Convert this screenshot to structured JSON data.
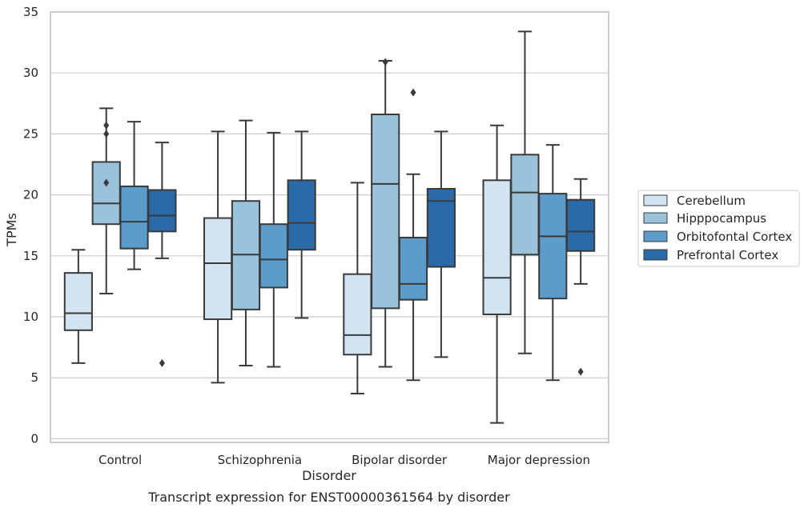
{
  "chart_data": {
    "type": "boxplot",
    "caption": "Transcript expression for ENST00000361564 by disorder",
    "xlabel": "Disorder",
    "ylabel": "TPMs",
    "ylim": [
      -0.3,
      35
    ],
    "yticks": [
      0,
      5,
      10,
      15,
      20,
      25,
      30,
      35
    ],
    "grid": "horizontal",
    "legend_position": "right",
    "categories": [
      "Control",
      "Schizophrenia",
      "Bipolar disorder",
      "Major depression"
    ],
    "series": [
      {
        "name": "Cerebellum",
        "color": "#d2e3f2",
        "boxes": [
          {
            "whislo": 6.2,
            "q1": 8.9,
            "med": 10.3,
            "q3": 13.6,
            "whishi": 15.5,
            "fliers": []
          },
          {
            "whislo": 4.6,
            "q1": 9.8,
            "med": 14.4,
            "q3": 18.1,
            "whishi": 25.2,
            "fliers": []
          },
          {
            "whislo": 3.7,
            "q1": 6.9,
            "med": 8.5,
            "q3": 13.5,
            "whishi": 21.0,
            "fliers": []
          },
          {
            "whislo": 1.3,
            "q1": 10.2,
            "med": 13.2,
            "q3": 21.2,
            "whishi": 25.7,
            "fliers": []
          }
        ]
      },
      {
        "name": "Hipppocampus",
        "color": "#9ac3db",
        "boxes": [
          {
            "whislo": 11.9,
            "q1": 17.6,
            "med": 19.3,
            "q3": 22.7,
            "whishi": 27.1,
            "fliers": [
              21.0,
              25.0,
              25.7
            ]
          },
          {
            "whislo": 6.0,
            "q1": 10.6,
            "med": 15.1,
            "q3": 19.5,
            "whishi": 26.1,
            "fliers": []
          },
          {
            "whislo": 5.9,
            "q1": 10.7,
            "med": 20.9,
            "q3": 26.6,
            "whishi": 31.0,
            "fliers": [
              30.9
            ]
          },
          {
            "whislo": 7.0,
            "q1": 15.1,
            "med": 20.2,
            "q3": 23.3,
            "whishi": 33.4,
            "fliers": []
          }
        ]
      },
      {
        "name": "Orbitofontal Cortex",
        "color": "#5b9ccb",
        "boxes": [
          {
            "whislo": 13.9,
            "q1": 15.6,
            "med": 17.8,
            "q3": 20.7,
            "whishi": 26.0,
            "fliers": []
          },
          {
            "whislo": 5.9,
            "q1": 12.4,
            "med": 14.7,
            "q3": 17.6,
            "whishi": 25.1,
            "fliers": []
          },
          {
            "whislo": 4.8,
            "q1": 11.4,
            "med": 12.7,
            "q3": 16.5,
            "whishi": 21.7,
            "fliers": [
              28.4
            ]
          },
          {
            "whislo": 4.8,
            "q1": 11.5,
            "med": 16.6,
            "q3": 20.1,
            "whishi": 24.1,
            "fliers": []
          }
        ]
      },
      {
        "name": "Prefrontal Cortex",
        "color": "#2b6aa8",
        "boxes": [
          {
            "whislo": 14.8,
            "q1": 17.0,
            "med": 18.3,
            "q3": 20.4,
            "whishi": 24.3,
            "fliers": [
              6.2
            ]
          },
          {
            "whislo": 9.9,
            "q1": 15.5,
            "med": 17.7,
            "q3": 21.2,
            "whishi": 25.2,
            "fliers": []
          },
          {
            "whislo": 6.7,
            "q1": 14.1,
            "med": 19.5,
            "q3": 20.5,
            "whishi": 25.2,
            "fliers": []
          },
          {
            "whislo": 12.7,
            "q1": 15.4,
            "med": 17.0,
            "q3": 19.6,
            "whishi": 21.3,
            "fliers": [
              5.5
            ]
          }
        ]
      }
    ]
  },
  "colors": {
    "grid": "#cccccc",
    "frame": "#cccccc",
    "box_edge": "#3a3a3a",
    "text": "#262626"
  }
}
